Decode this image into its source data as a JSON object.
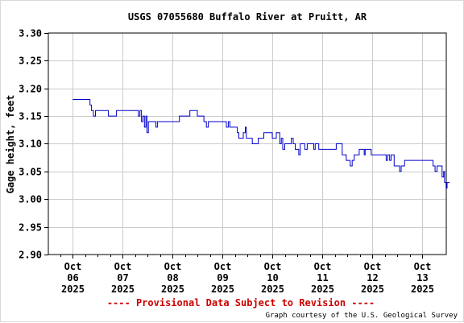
{
  "chart_data": {
    "type": "line",
    "title": "USGS 07055680 Buffalo River at Pruitt, AR",
    "ylabel": "Gage height, feet",
    "xlabel": "",
    "ylim": [
      2.9,
      3.3
    ],
    "yticks": [
      "2.90",
      "2.95",
      "3.00",
      "3.05",
      "3.10",
      "3.15",
      "3.20",
      "3.25",
      "3.30"
    ],
    "grid": true,
    "xtick_labels": [
      [
        "Oct",
        "06",
        "2025"
      ],
      [
        "Oct",
        "07",
        "2025"
      ],
      [
        "Oct",
        "08",
        "2025"
      ],
      [
        "Oct",
        "09",
        "2025"
      ],
      [
        "Oct",
        "10",
        "2025"
      ],
      [
        "Oct",
        "11",
        "2025"
      ],
      [
        "Oct",
        "12",
        "2025"
      ],
      [
        "Oct",
        "13",
        "2025"
      ]
    ],
    "xlim_days": [
      0,
      8.5
    ],
    "series": [
      {
        "color": "#0000cc",
        "points": [
          [
            0.0,
            3.18
          ],
          [
            0.3,
            3.18
          ],
          [
            0.35,
            3.17
          ],
          [
            0.38,
            3.16
          ],
          [
            0.42,
            3.15
          ],
          [
            0.46,
            3.16
          ],
          [
            0.7,
            3.16
          ],
          [
            0.72,
            3.15
          ],
          [
            0.85,
            3.15
          ],
          [
            0.88,
            3.16
          ],
          [
            1.3,
            3.16
          ],
          [
            1.32,
            3.15
          ],
          [
            1.35,
            3.16
          ],
          [
            1.38,
            3.14
          ],
          [
            1.41,
            3.15
          ],
          [
            1.44,
            3.13
          ],
          [
            1.47,
            3.15
          ],
          [
            1.49,
            3.12
          ],
          [
            1.52,
            3.14
          ],
          [
            1.65,
            3.14
          ],
          [
            1.67,
            3.13
          ],
          [
            1.7,
            3.14
          ],
          [
            2.1,
            3.14
          ],
          [
            2.14,
            3.15
          ],
          [
            2.3,
            3.15
          ],
          [
            2.35,
            3.16
          ],
          [
            2.45,
            3.16
          ],
          [
            2.5,
            3.15
          ],
          [
            2.6,
            3.15
          ],
          [
            2.63,
            3.14
          ],
          [
            2.68,
            3.13
          ],
          [
            2.72,
            3.14
          ],
          [
            3.05,
            3.14
          ],
          [
            3.08,
            3.13
          ],
          [
            3.12,
            3.14
          ],
          [
            3.15,
            3.13
          ],
          [
            3.28,
            3.13
          ],
          [
            3.3,
            3.12
          ],
          [
            3.33,
            3.11
          ],
          [
            3.4,
            3.11
          ],
          [
            3.42,
            3.12
          ],
          [
            3.46,
            3.13
          ],
          [
            3.48,
            3.11
          ],
          [
            3.55,
            3.11
          ],
          [
            3.6,
            3.1
          ],
          [
            3.7,
            3.1
          ],
          [
            3.72,
            3.11
          ],
          [
            3.8,
            3.11
          ],
          [
            3.83,
            3.12
          ],
          [
            3.98,
            3.12
          ],
          [
            4.0,
            3.11
          ],
          [
            4.06,
            3.11
          ],
          [
            4.08,
            3.12
          ],
          [
            4.12,
            3.12
          ],
          [
            4.15,
            3.1
          ],
          [
            4.18,
            3.11
          ],
          [
            4.21,
            3.09
          ],
          [
            4.25,
            3.1
          ],
          [
            4.35,
            3.1
          ],
          [
            4.38,
            3.11
          ],
          [
            4.42,
            3.1
          ],
          [
            4.46,
            3.09
          ],
          [
            4.5,
            3.09
          ],
          [
            4.53,
            3.08
          ],
          [
            4.56,
            3.1
          ],
          [
            4.62,
            3.1
          ],
          [
            4.65,
            3.09
          ],
          [
            4.7,
            3.1
          ],
          [
            4.8,
            3.1
          ],
          [
            4.83,
            3.09
          ],
          [
            4.86,
            3.1
          ],
          [
            4.9,
            3.1
          ],
          [
            4.93,
            3.09
          ],
          [
            5.25,
            3.09
          ],
          [
            5.28,
            3.1
          ],
          [
            5.36,
            3.1
          ],
          [
            5.4,
            3.08
          ],
          [
            5.45,
            3.08
          ],
          [
            5.48,
            3.07
          ],
          [
            5.52,
            3.07
          ],
          [
            5.56,
            3.06
          ],
          [
            5.6,
            3.07
          ],
          [
            5.64,
            3.08
          ],
          [
            5.7,
            3.08
          ],
          [
            5.74,
            3.09
          ],
          [
            5.82,
            3.09
          ],
          [
            5.84,
            3.08
          ],
          [
            5.86,
            3.09
          ],
          [
            5.95,
            3.09
          ],
          [
            5.98,
            3.08
          ],
          [
            6.25,
            3.08
          ],
          [
            6.28,
            3.07
          ],
          [
            6.31,
            3.08
          ],
          [
            6.35,
            3.07
          ],
          [
            6.38,
            3.08
          ],
          [
            6.42,
            3.08
          ],
          [
            6.44,
            3.06
          ],
          [
            6.52,
            3.06
          ],
          [
            6.55,
            3.05
          ],
          [
            6.58,
            3.06
          ],
          [
            6.62,
            3.06
          ],
          [
            6.65,
            3.07
          ],
          [
            7.2,
            3.07
          ],
          [
            7.22,
            3.06
          ],
          [
            7.26,
            3.05
          ],
          [
            7.3,
            3.06
          ],
          [
            7.36,
            3.06
          ],
          [
            7.4,
            3.04
          ],
          [
            7.43,
            3.05
          ],
          [
            7.45,
            3.03
          ],
          [
            7.48,
            3.02
          ],
          [
            7.5,
            3.03
          ],
          [
            7.55,
            3.03
          ]
        ]
      }
    ]
  },
  "footer": {
    "provisional": "---- Provisional Data Subject to Revision ----",
    "courtesy": "Graph courtesy of the U.S. Geological Survey"
  },
  "colors": {
    "line": "#0000cc",
    "grid": "#cccccc",
    "axis": "#000000",
    "provisional": "#cc0000"
  }
}
